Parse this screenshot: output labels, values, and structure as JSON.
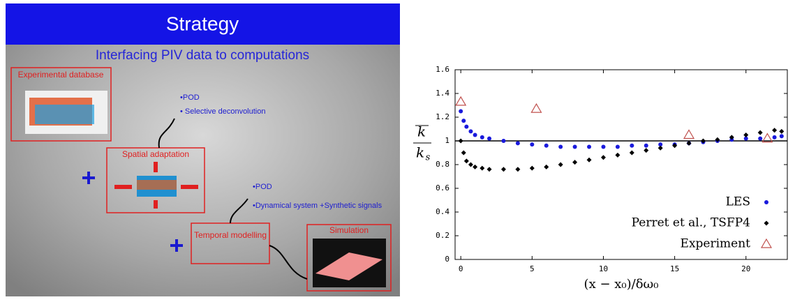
{
  "slide": {
    "title": "Strategy",
    "subtitle": "Interfacing PIV data to computations",
    "boxes": [
      "Experimental database",
      "Spatial adaptation",
      "Temporal modelling",
      "Simulation"
    ],
    "notes_1": [
      "•POD",
      "• Selective deconvolution"
    ],
    "notes_2": [
      "•POD",
      "•Dynamical system +Synthetic signals"
    ]
  },
  "chart_data": {
    "type": "scatter",
    "xlabel": "(x − x₀)/δω₀",
    "ylabel_numerator": "k",
    "ylabel_denominator": "k",
    "ylabel_subscript": "s",
    "xlim": [
      -0.4,
      22.9
    ],
    "ylim": [
      0,
      1.6
    ],
    "xticks": [
      0,
      5,
      10,
      15,
      20
    ],
    "yticks": [
      0,
      0.2,
      0.4,
      0.6,
      0.8,
      1,
      1.2,
      1.4,
      1.6
    ],
    "hline": 1,
    "legend": "lower-right",
    "series": [
      {
        "name": "LES",
        "color": "#1a1adc",
        "marker": "circle",
        "x": [
          0,
          0.2,
          0.4,
          0.7,
          1,
          1.5,
          2,
          3,
          4,
          5,
          6,
          7,
          8,
          9,
          10,
          11,
          12,
          13,
          14,
          15,
          16,
          17,
          18,
          19,
          20,
          21,
          22,
          22.5
        ],
        "values": [
          1.25,
          1.17,
          1.12,
          1.08,
          1.05,
          1.03,
          1.02,
          1.0,
          0.98,
          0.97,
          0.96,
          0.95,
          0.95,
          0.95,
          0.95,
          0.95,
          0.96,
          0.96,
          0.97,
          0.97,
          0.98,
          0.99,
          1.0,
          1.01,
          1.02,
          1.02,
          1.03,
          1.04
        ]
      },
      {
        "name": "Perret et al., TSFP4",
        "color": "#000000",
        "marker": "diamond",
        "x": [
          0,
          0.2,
          0.4,
          0.7,
          1,
          1.5,
          2,
          3,
          4,
          5,
          6,
          7,
          8,
          9,
          10,
          11,
          12,
          13,
          14,
          15,
          16,
          17,
          18,
          19,
          20,
          21,
          22,
          22.5
        ],
        "values": [
          1.0,
          0.9,
          0.83,
          0.8,
          0.78,
          0.77,
          0.76,
          0.76,
          0.76,
          0.77,
          0.78,
          0.8,
          0.82,
          0.84,
          0.86,
          0.88,
          0.9,
          0.92,
          0.94,
          0.96,
          0.98,
          1.0,
          1.01,
          1.03,
          1.05,
          1.07,
          1.09,
          1.08
        ]
      },
      {
        "name": "Experiment",
        "color": "#c0504d",
        "marker": "triangle",
        "x": [
          0,
          5.3,
          16,
          21.5
        ],
        "values": [
          1.33,
          1.27,
          1.05,
          1.02
        ]
      }
    ]
  }
}
